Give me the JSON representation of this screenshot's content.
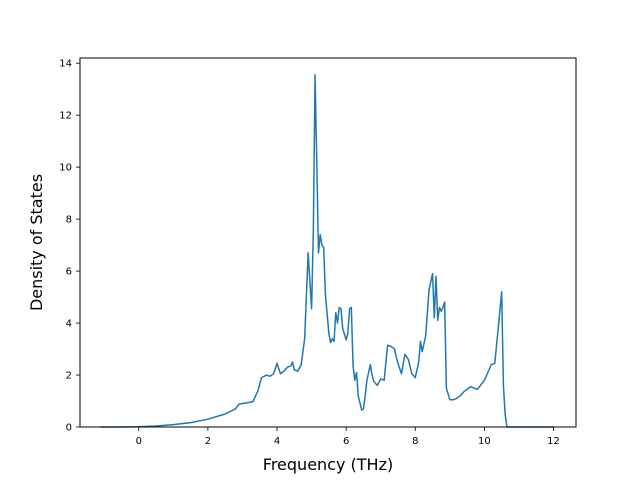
{
  "chart_data": {
    "type": "line",
    "title": "",
    "xlabel": "Frequency (THz)",
    "ylabel": "Density of States",
    "xlim": [
      -1.7,
      12.65
    ],
    "ylim": [
      0,
      14.2
    ],
    "xticks": [
      0,
      2,
      4,
      6,
      8,
      10,
      12
    ],
    "yticks": [
      0,
      2,
      4,
      6,
      8,
      10,
      12,
      14
    ],
    "xtick_labels": [
      "0",
      "2",
      "4",
      "6",
      "8",
      "10",
      "12"
    ],
    "ytick_labels": [
      "0",
      "2",
      "4",
      "6",
      "8",
      "10",
      "12",
      "14"
    ],
    "grid": false,
    "legend": "none",
    "series": [
      {
        "color": "#1f77b4",
        "x": [
          -1.1,
          -0.5,
          0.0,
          0.5,
          1.0,
          1.5,
          2.0,
          2.5,
          2.8,
          2.9,
          3.3,
          3.45,
          3.55,
          3.7,
          3.8,
          3.9,
          4.0,
          4.1,
          4.2,
          4.3,
          4.4,
          4.45,
          4.5,
          4.6,
          4.7,
          4.8,
          4.9,
          5.0,
          5.05,
          5.1,
          5.15,
          5.2,
          5.25,
          5.3,
          5.35,
          5.4,
          5.5,
          5.55,
          5.6,
          5.65,
          5.7,
          5.75,
          5.8,
          5.85,
          5.9,
          6.0,
          6.05,
          6.1,
          6.15,
          6.2,
          6.25,
          6.3,
          6.35,
          6.45,
          6.5,
          6.55,
          6.6,
          6.7,
          6.75,
          6.8,
          6.9,
          7.0,
          7.1,
          7.2,
          7.3,
          7.4,
          7.45,
          7.5,
          7.55,
          7.6,
          7.7,
          7.8,
          7.9,
          8.0,
          8.1,
          8.15,
          8.2,
          8.3,
          8.4,
          8.5,
          8.55,
          8.6,
          8.65,
          8.7,
          8.75,
          8.8,
          8.85,
          8.9,
          9.0,
          9.1,
          9.2,
          9.3,
          9.4,
          9.6,
          9.8,
          10.0,
          10.2,
          10.3,
          10.4,
          10.5,
          10.55,
          10.6,
          10.65,
          10.7,
          10.75,
          10.8,
          10.9,
          11.0,
          12.0
        ],
        "values": [
          0.0,
          0.0,
          0.01,
          0.04,
          0.09,
          0.17,
          0.3,
          0.5,
          0.7,
          0.88,
          0.97,
          1.4,
          1.9,
          2.0,
          1.95,
          2.05,
          2.45,
          2.05,
          2.15,
          2.3,
          2.35,
          2.5,
          2.2,
          2.15,
          2.4,
          3.4,
          6.7,
          4.55,
          7.5,
          13.55,
          10.2,
          6.7,
          7.4,
          7.0,
          6.9,
          5.1,
          3.6,
          3.25,
          3.4,
          3.3,
          4.4,
          4.0,
          4.6,
          4.55,
          3.8,
          3.35,
          3.6,
          4.55,
          4.6,
          2.35,
          1.8,
          2.1,
          1.2,
          0.65,
          0.7,
          1.2,
          1.8,
          2.4,
          2.0,
          1.75,
          1.6,
          1.85,
          1.8,
          3.15,
          3.1,
          3.0,
          2.7,
          2.45,
          2.25,
          2.05,
          2.8,
          2.6,
          2.05,
          1.9,
          2.5,
          3.3,
          2.9,
          3.5,
          5.3,
          5.9,
          4.2,
          5.8,
          4.1,
          4.6,
          4.45,
          4.6,
          4.8,
          1.5,
          1.05,
          1.05,
          1.1,
          1.2,
          1.35,
          1.55,
          1.45,
          1.8,
          2.4,
          2.45,
          3.8,
          5.2,
          1.6,
          0.5,
          0.0,
          0.0,
          0.0,
          0.0,
          0.0,
          0.0,
          0.0
        ]
      }
    ]
  }
}
